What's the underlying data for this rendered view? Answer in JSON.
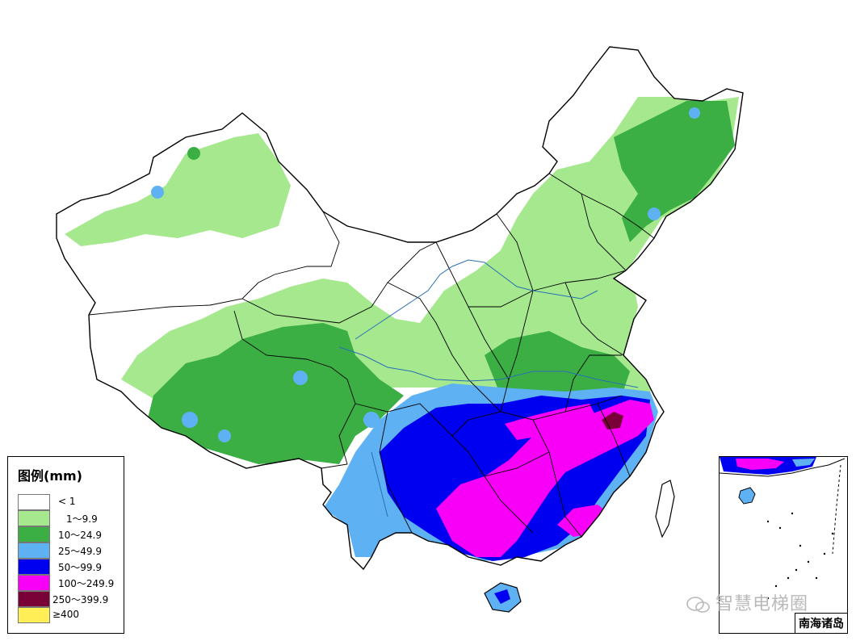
{
  "legend": {
    "title": "图例(mm)",
    "items": [
      {
        "label": "< 1",
        "color": "#ffffff"
      },
      {
        "label": "1～9.9",
        "color": "#a6e88e"
      },
      {
        "label": "10～24.9",
        "color": "#3caf44"
      },
      {
        "label": "25～49.9",
        "color": "#5eb2f4"
      },
      {
        "label": "50～99.9",
        "color": "#0000f0"
      },
      {
        "label": "100～249.9",
        "color": "#f800f8"
      },
      {
        "label": "250～399.9",
        "color": "#7a0038"
      },
      {
        "label": "≥400",
        "color": "#ffee55"
      }
    ]
  },
  "inset": {
    "label": "南海诸岛"
  },
  "watermark": {
    "text": "智慧电梯圈"
  },
  "colors": {
    "boundary": "#000000",
    "river": "#2a6fb5"
  }
}
